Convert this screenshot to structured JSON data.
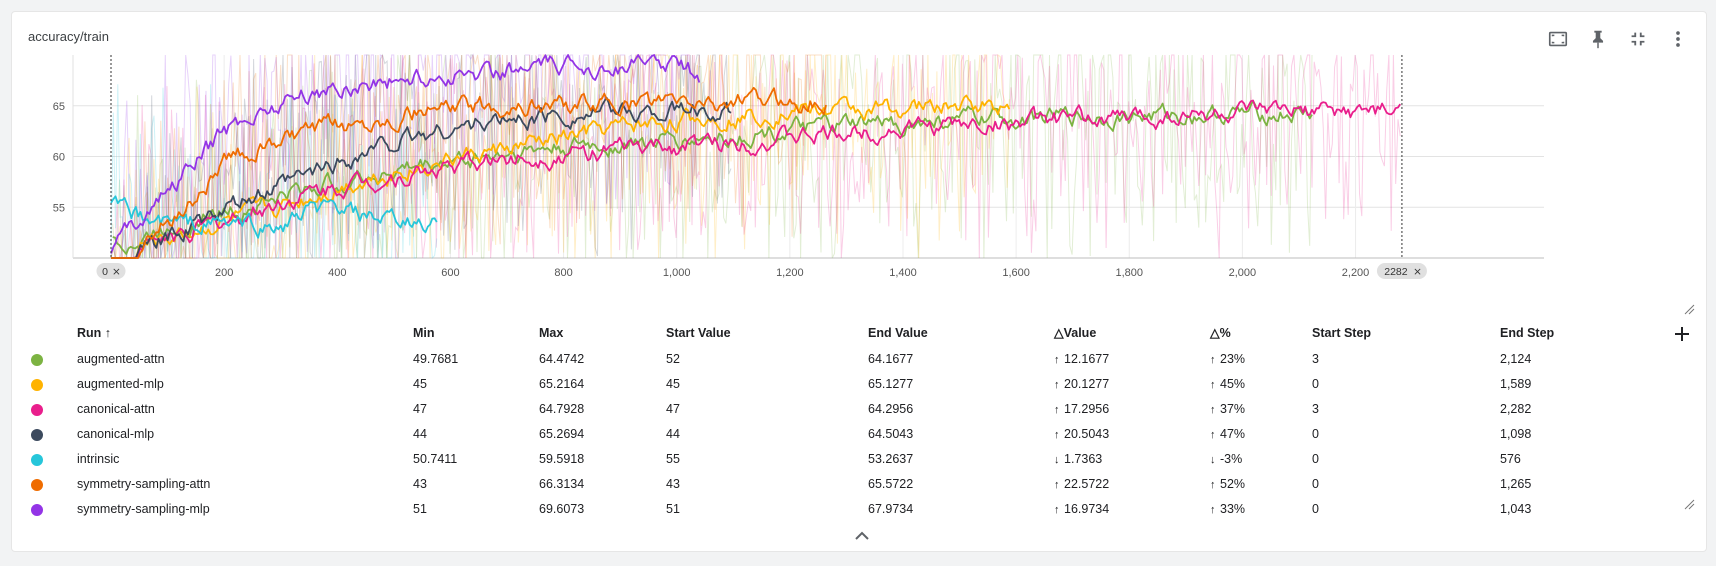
{
  "card": {
    "title": "accuracy/train",
    "toolbar": [
      "fit-domain-icon",
      "pin-icon",
      "collapse-icon",
      "more-vert-icon"
    ]
  },
  "chart_data": {
    "type": "line",
    "title": "",
    "xlabel": "",
    "ylabel": "",
    "xlim": [
      0,
      2400
    ],
    "ylim": [
      50,
      70
    ],
    "x_ticks": [
      "200",
      "400",
      "600",
      "800",
      "1,000",
      "1,200",
      "1,400",
      "1,600",
      "1,800",
      "2,000",
      "2,200"
    ],
    "y_ticks": [
      "55",
      "60",
      "65"
    ],
    "grid": true,
    "range_markers": [
      {
        "label": "0",
        "step": 0
      },
      {
        "label": "2282",
        "step": 2282
      }
    ],
    "series": [
      {
        "name": "augmented-attn",
        "color": "#7cb342",
        "x": [
          3,
          50,
          100,
          200,
          300,
          400,
          500,
          600,
          700,
          800,
          900,
          1000,
          1100,
          1200,
          1300,
          1400,
          1500,
          1600,
          1700,
          1800,
          1900,
          2000,
          2124
        ],
        "y": [
          52,
          51.5,
          53,
          54.5,
          56,
          57.5,
          58.5,
          59.5,
          60.3,
          60.8,
          61.2,
          61.5,
          62,
          62.5,
          63,
          63.2,
          63.6,
          63.8,
          63.9,
          64,
          64.1,
          64.2,
          64.2
        ]
      },
      {
        "name": "augmented-mlp",
        "color": "#ffb300",
        "x": [
          0,
          50,
          100,
          200,
          300,
          400,
          500,
          600,
          700,
          800,
          900,
          1000,
          1100,
          1200,
          1300,
          1400,
          1500,
          1589
        ],
        "y": [
          45,
          51,
          52,
          53.5,
          55,
          57,
          58.5,
          59.7,
          60.7,
          61.8,
          62.8,
          63.5,
          64,
          64.5,
          64.6,
          64.7,
          65,
          65.1
        ]
      },
      {
        "name": "canonical-attn",
        "color": "#e91e8c",
        "x": [
          3,
          50,
          100,
          200,
          300,
          400,
          500,
          600,
          700,
          800,
          900,
          1000,
          1100,
          1200,
          1300,
          1400,
          1500,
          1600,
          1700,
          1800,
          1900,
          2000,
          2100,
          2200,
          2282
        ],
        "y": [
          47,
          51,
          52,
          53.5,
          55.5,
          57,
          58,
          59,
          59.8,
          60.2,
          60.6,
          61,
          61.4,
          61.8,
          62.3,
          62.8,
          63.1,
          63.4,
          63.6,
          63.8,
          64.1,
          64.2,
          64.3,
          64.4,
          64.3
        ]
      },
      {
        "name": "canonical-mlp",
        "color": "#3c4a5e",
        "x": [
          0,
          50,
          100,
          200,
          300,
          400,
          500,
          600,
          700,
          800,
          900,
          1000,
          1098
        ],
        "y": [
          44,
          50.5,
          52,
          54.5,
          57,
          59.5,
          61.5,
          62.8,
          63.6,
          64.2,
          64.4,
          64.5,
          64.5
        ]
      },
      {
        "name": "intrinsic",
        "color": "#26c6da",
        "x": [
          0,
          50,
          100,
          200,
          300,
          350,
          400,
          450,
          500,
          576
        ],
        "y": [
          55,
          54,
          53.5,
          53.5,
          53,
          54.5,
          54.8,
          54,
          53.4,
          53.3
        ]
      },
      {
        "name": "symmetry-sampling-attn",
        "color": "#ef6c00",
        "x": [
          0,
          50,
          100,
          150,
          200,
          300,
          400,
          500,
          600,
          700,
          800,
          900,
          1000,
          1100,
          1200,
          1265
        ],
        "y": [
          43,
          51,
          53.5,
          56,
          59.5,
          61.5,
          63,
          64,
          64.7,
          65,
          65.1,
          65.2,
          65.3,
          65.4,
          65.5,
          65.6
        ]
      },
      {
        "name": "symmetry-sampling-mlp",
        "color": "#9334e6",
        "x": [
          0,
          50,
          100,
          150,
          200,
          300,
          400,
          500,
          600,
          700,
          800,
          900,
          1000,
          1043
        ],
        "y": [
          51,
          54,
          56.5,
          59.5,
          62.5,
          65.5,
          66.8,
          67.5,
          68,
          68.5,
          68.8,
          69,
          69.2,
          68
        ]
      }
    ]
  },
  "table": {
    "headers": {
      "run": "Run",
      "run_sort": "↑",
      "min": "Min",
      "max": "Max",
      "start_value": "Start Value",
      "end_value": "End Value",
      "delta_value": "△Value",
      "delta_pct": "△%",
      "start_step": "Start Step",
      "end_step": "End Step"
    },
    "rows": [
      {
        "color": "#7cb342",
        "run": "augmented-attn",
        "min": "49.7681",
        "max": "64.4742",
        "start": "52",
        "end": "64.1677",
        "dval_arrow": "↑",
        "dval": "12.1677",
        "dpct_arrow": "↑",
        "dpct": "23%",
        "sstep": "3",
        "estep": "2,124"
      },
      {
        "color": "#ffb300",
        "run": "augmented-mlp",
        "min": "45",
        "max": "65.2164",
        "start": "45",
        "end": "65.1277",
        "dval_arrow": "↑",
        "dval": "20.1277",
        "dpct_arrow": "↑",
        "dpct": "45%",
        "sstep": "0",
        "estep": "1,589"
      },
      {
        "color": "#e91e8c",
        "run": "canonical-attn",
        "min": "47",
        "max": "64.7928",
        "start": "47",
        "end": "64.2956",
        "dval_arrow": "↑",
        "dval": "17.2956",
        "dpct_arrow": "↑",
        "dpct": "37%",
        "sstep": "3",
        "estep": "2,282"
      },
      {
        "color": "#3c4a5e",
        "run": "canonical-mlp",
        "min": "44",
        "max": "65.2694",
        "start": "44",
        "end": "64.5043",
        "dval_arrow": "↑",
        "dval": "20.5043",
        "dpct_arrow": "↑",
        "dpct": "47%",
        "sstep": "0",
        "estep": "1,098"
      },
      {
        "color": "#26c6da",
        "run": "intrinsic",
        "min": "50.7411",
        "max": "59.5918",
        "start": "55",
        "end": "53.2637",
        "dval_arrow": "↓",
        "dval": "1.7363",
        "dpct_arrow": "↓",
        "dpct": "-3%",
        "sstep": "0",
        "estep": "576"
      },
      {
        "color": "#ef6c00",
        "run": "symmetry-sampling-attn",
        "min": "43",
        "max": "66.3134",
        "start": "43",
        "end": "65.5722",
        "dval_arrow": "↑",
        "dval": "22.5722",
        "dpct_arrow": "↑",
        "dpct": "52%",
        "sstep": "0",
        "estep": "1,265"
      },
      {
        "color": "#9334e6",
        "run": "symmetry-sampling-mlp",
        "min": "51",
        "max": "69.6073",
        "start": "51",
        "end": "67.9734",
        "dval_arrow": "↑",
        "dval": "16.9734",
        "dpct_arrow": "↑",
        "dpct": "33%",
        "sstep": "0",
        "estep": "1,043"
      }
    ]
  },
  "icons": {
    "add_column": "add-icon",
    "expand": "chevron-up-icon",
    "resize": "resize-handle-icon"
  }
}
